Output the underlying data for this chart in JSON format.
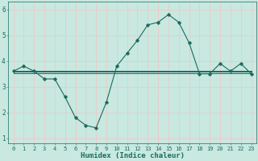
{
  "x": [
    0,
    1,
    2,
    3,
    4,
    5,
    6,
    7,
    8,
    9,
    10,
    11,
    12,
    13,
    14,
    15,
    16,
    17,
    18,
    19,
    20,
    21,
    22,
    23
  ],
  "y_main": [
    3.6,
    3.8,
    3.6,
    3.3,
    3.3,
    2.6,
    1.8,
    1.5,
    1.4,
    2.4,
    3.8,
    4.3,
    4.8,
    5.4,
    5.5,
    5.8,
    5.5,
    4.7,
    3.5,
    3.5,
    3.9,
    3.6,
    3.9,
    3.5
  ],
  "y_flat1": [
    3.62,
    3.62,
    3.62,
    3.62,
    3.62,
    3.62,
    3.62,
    3.62,
    3.62,
    3.62,
    3.62,
    3.62,
    3.62,
    3.62,
    3.62,
    3.62,
    3.62,
    3.62,
    3.62,
    3.62,
    3.62,
    3.62,
    3.62,
    3.62
  ],
  "y_flat2": [
    3.57,
    3.57,
    3.57,
    3.57,
    3.57,
    3.57,
    3.57,
    3.57,
    3.57,
    3.57,
    3.57,
    3.57,
    3.57,
    3.57,
    3.57,
    3.57,
    3.57,
    3.57,
    3.57,
    3.57,
    3.57,
    3.57,
    3.57,
    3.57
  ],
  "y_flat3": [
    3.52,
    3.52,
    3.52,
    3.52,
    3.52,
    3.52,
    3.52,
    3.52,
    3.52,
    3.52,
    3.52,
    3.52,
    3.52,
    3.52,
    3.52,
    3.52,
    3.52,
    3.52,
    3.52,
    3.52,
    3.52,
    3.52,
    3.52,
    3.52
  ],
  "line_color": "#1a6b5e",
  "bg_color": "#c8e8e0",
  "grid_color": "#f0c8c8",
  "xlabel": "Humidex (Indice chaleur)",
  "ylim": [
    0.8,
    6.3
  ],
  "xlim": [
    -0.5,
    23.5
  ],
  "yticks": [
    1,
    2,
    3,
    4,
    5,
    6
  ],
  "xticks": [
    0,
    1,
    2,
    3,
    4,
    5,
    6,
    7,
    8,
    9,
    10,
    11,
    12,
    13,
    14,
    15,
    16,
    17,
    18,
    19,
    20,
    21,
    22,
    23
  ],
  "tick_fontsize": 5.0,
  "xlabel_fontsize": 6.5
}
